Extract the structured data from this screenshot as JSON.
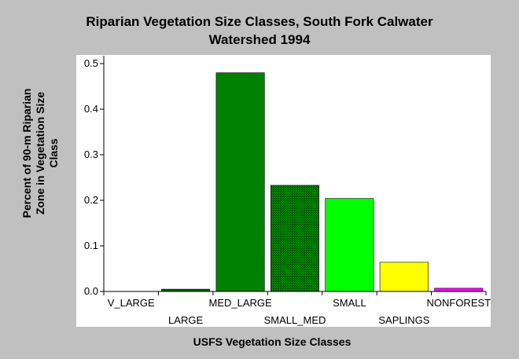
{
  "chart_data": {
    "type": "bar",
    "title_line1": "Riparian Vegetation Size Classes, South Fork Calwater",
    "title_line2": "Watershed 1994",
    "xlabel": "USFS Vegetation Size Classes",
    "ylabel_lines": [
      "Percent of 90-m Riparian",
      "Zone in Vegetation Size",
      "Class"
    ],
    "categories": [
      "V_LARGE",
      "LARGE",
      "MED_LARGE",
      "SMALL_MED",
      "SMALL",
      "SAPLINGS",
      "NONFOREST"
    ],
    "values": [
      0.0,
      0.005,
      0.48,
      0.233,
      0.204,
      0.064,
      0.007
    ],
    "colors": [
      "#006400",
      "#006400",
      "#008000",
      "#008000",
      "#00ff00",
      "#ffff00",
      "#ff00ff"
    ],
    "patterned": [
      false,
      false,
      false,
      true,
      false,
      false,
      false
    ],
    "ylim": [
      0,
      0.5
    ],
    "yticks": [
      "0.0",
      "0.1",
      "0.2",
      "0.3",
      "0.4",
      "0.5"
    ],
    "grid": false,
    "legend": "none"
  }
}
